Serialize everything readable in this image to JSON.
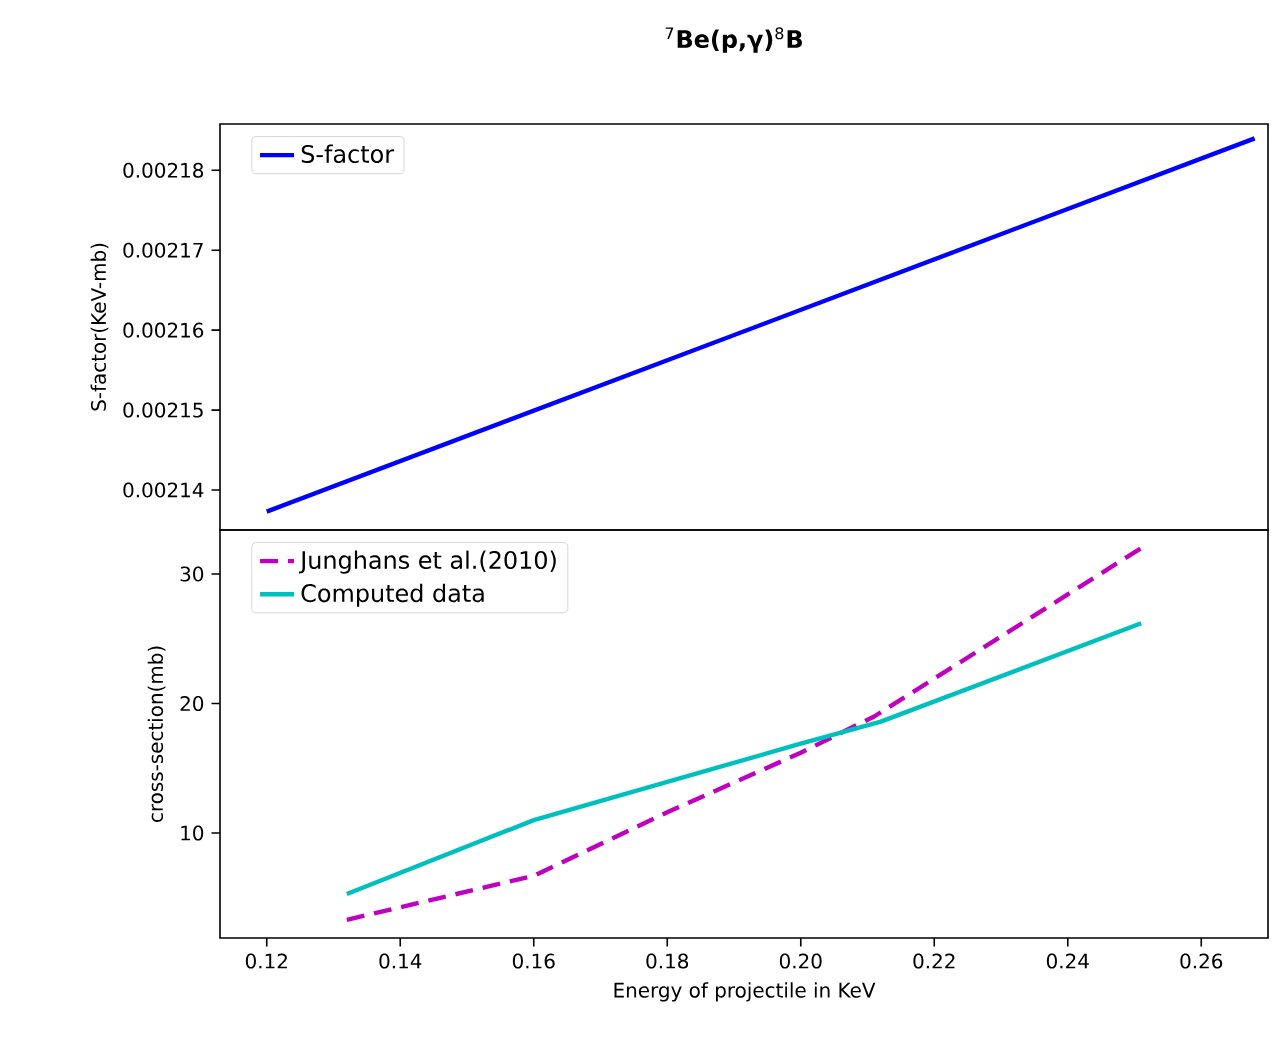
{
  "chart_data": [
    {
      "type": "line",
      "title": "$^{7}$**Be(p,γ)**$^{8}$**B**",
      "ylabel": "S-factor(KeV-mb)",
      "xlim": [
        0.113,
        0.27
      ],
      "ylim": [
        0.002135,
        0.0021858
      ],
      "yticks": [
        0.00214,
        0.00215,
        0.00216,
        0.00217,
        0.00218
      ],
      "tick_labels": "y",
      "legend": "top left",
      "series": [
        {
          "name": "S-factor",
          "color": "#0000ff",
          "line_style": "solid",
          "x": [
            0.12,
            0.268
          ],
          "values": [
            0.0021373,
            0.002184
          ]
        }
      ]
    },
    {
      "type": "line",
      "xlabel": "Energy of projectile in KeV",
      "ylabel": "cross-section(mb)",
      "xlim": [
        0.113,
        0.27
      ],
      "ylim": [
        1.9,
        33.4
      ],
      "xticks": [
        0.12,
        0.14,
        0.16,
        0.18,
        {
          "value": 0.2,
          "label": "0.20"
        },
        0.22,
        0.24,
        0.26
      ],
      "yticks": [
        10,
        20,
        30
      ],
      "legend": "top left",
      "series": [
        {
          "name": "Junghans et al.(2010)",
          "color": "#bf00bf",
          "line_style": "dashed",
          "x": [
            0.132,
            0.16,
            0.18,
            0.2,
            0.211,
            0.251
          ],
          "values": [
            3.3,
            6.7,
            11.6,
            16.2,
            19.0,
            32.0
          ]
        },
        {
          "name": "Computed data",
          "color": "#00bfbf",
          "line_style": "solid",
          "x": [
            0.132,
            0.16,
            0.2,
            0.212,
            0.251
          ],
          "values": [
            5.3,
            11.0,
            16.9,
            18.6,
            26.2
          ]
        }
      ]
    }
  ]
}
